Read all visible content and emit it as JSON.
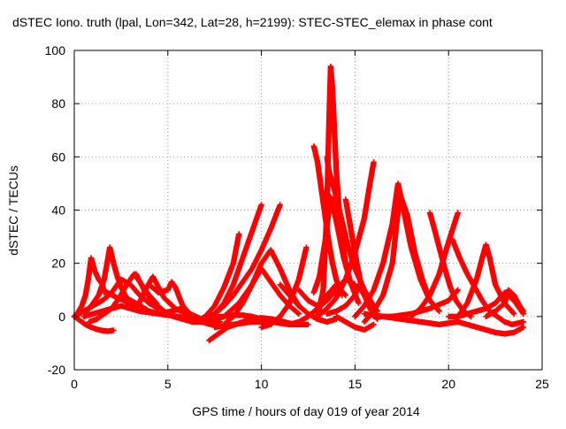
{
  "chart_data": {
    "type": "scatter",
    "title": "dSTEC Iono. truth (lpal, Lon=342, Lat=28, h=2199): STEC-STEC_elemax in phase cont",
    "xlabel": "GPS time / hours of day 019 of year 2014",
    "ylabel": "dSTEC  / TECUs",
    "xlim": [
      0,
      25
    ],
    "ylim": [
      -20,
      100
    ],
    "xticks": [
      0,
      5,
      10,
      15,
      20,
      25
    ],
    "yticks": [
      -20,
      0,
      20,
      40,
      60,
      80,
      100
    ],
    "grid": true,
    "marker": "+",
    "color": "#ff0000",
    "series": [
      {
        "x": [
          0.0,
          0.3,
          0.6,
          0.9,
          1.2,
          1.5,
          1.8,
          2.1
        ],
        "y": [
          0,
          -1.5,
          -3,
          -4,
          -4.8,
          -5.3,
          -5.5,
          -5.2
        ]
      },
      {
        "x": [
          0.0,
          0.2,
          0.4,
          0.6,
          0.75,
          0.9,
          1.1,
          1.3,
          1.5,
          1.6
        ],
        "y": [
          0,
          1.5,
          4,
          8,
          14,
          22,
          17,
          14,
          12,
          9
        ]
      },
      {
        "x": [
          0.5,
          0.8,
          1.0,
          1.3,
          1.6,
          1.9,
          2.1,
          2.3,
          2.5,
          2.8,
          3.2
        ],
        "y": [
          1,
          3,
          5,
          8,
          14,
          26,
          20,
          15,
          11,
          7,
          4
        ]
      },
      {
        "x": [
          0.8,
          1.2,
          1.6,
          2.0,
          2.4,
          2.8,
          3.2,
          3.6,
          4.0,
          4.4
        ],
        "y": [
          -2,
          -1,
          1,
          3,
          7,
          12,
          16,
          12,
          8,
          5
        ]
      },
      {
        "x": [
          0.0,
          0.5,
          1.0,
          1.5,
          2.0,
          2.5,
          3.0,
          3.5,
          4.0,
          4.5
        ],
        "y": [
          0,
          2,
          4,
          6,
          9,
          14,
          12,
          8,
          5,
          3
        ]
      },
      {
        "x": [
          0.5,
          1.5,
          2.5,
          3.5,
          4.5,
          5.5,
          6.3
        ],
        "y": [
          0,
          2,
          4,
          2,
          1,
          0,
          -1
        ]
      },
      {
        "x": [
          1.5,
          2.3,
          3.0,
          3.4,
          3.8,
          4.2,
          4.8,
          5.4,
          6.0,
          6.8
        ],
        "y": [
          10,
          7,
          5,
          4,
          10,
          15,
          7,
          3,
          1,
          -2
        ]
      },
      {
        "x": [
          2.5,
          3.3,
          4.0,
          4.6,
          5.2,
          5.7,
          6.2,
          6.8,
          7.4
        ],
        "y": [
          8,
          5,
          2,
          1,
          2,
          3,
          1,
          -1,
          -2
        ]
      },
      {
        "x": [
          3.3,
          3.8,
          4.3,
          4.8,
          5.3,
          5.8,
          6.3,
          6.8,
          7.3,
          7.8
        ],
        "y": [
          16,
          9,
          5,
          2,
          0,
          -1,
          -2,
          -2,
          -1,
          0
        ]
      },
      {
        "x": [
          4.0,
          4.5,
          5.0,
          5.2,
          5.4,
          5.8,
          6.3,
          6.8,
          7.3,
          7.8
        ],
        "y": [
          12,
          9,
          10,
          13,
          11,
          4,
          0,
          -2,
          -3,
          -2
        ]
      },
      {
        "x": [
          5.5,
          6.0,
          6.5,
          7.0,
          7.5,
          8.0,
          8.5,
          9.0,
          9.5,
          10.0,
          10.5
        ],
        "y": [
          0,
          -1,
          -1.5,
          -1,
          -0.5,
          0,
          0.5,
          0.5,
          0,
          -1,
          -2
        ]
      },
      {
        "x": [
          6.5,
          7.0,
          7.5,
          8.0,
          8.5,
          8.8
        ],
        "y": [
          -2,
          0,
          4,
          11,
          20,
          31
        ]
      },
      {
        "x": [
          6.5,
          7.0,
          7.5,
          8.0,
          8.5,
          9.0,
          9.5,
          10.0
        ],
        "y": [
          -2,
          -1,
          1,
          5,
          12,
          22,
          32,
          42
        ]
      },
      {
        "x": [
          7.0,
          7.5,
          8.0,
          8.5,
          9.0,
          9.5,
          10.0,
          10.5,
          11.0
        ],
        "y": [
          -1,
          1,
          4,
          8,
          13,
          18,
          25,
          33,
          42
        ]
      },
      {
        "x": [
          7.2,
          7.4,
          7.8,
          8.2,
          8.6,
          9.0,
          9.4,
          10.0,
          10.6,
          11.2,
          11.8
        ],
        "y": [
          -9,
          -8,
          -6,
          -4,
          -3,
          -2,
          -1,
          -0.5,
          -1,
          -2,
          -3
        ]
      },
      {
        "x": [
          7.3,
          8.0,
          8.8,
          9.5,
          10.0,
          10.5,
          11.0,
          11.5,
          12.0
        ],
        "y": [
          -2,
          0,
          5,
          12,
          18,
          13,
          8,
          4,
          1
        ]
      },
      {
        "x": [
          7.5,
          8.5,
          9.5,
          10.5,
          11.5,
          12.5
        ],
        "y": [
          -4,
          -3,
          -2,
          -2,
          -3,
          -3
        ]
      },
      {
        "x": [
          8.0,
          8.5,
          9.0,
          9.5,
          10.0,
          10.5,
          11.0,
          11.5,
          12.0
        ],
        "y": [
          -3,
          0,
          5,
          12,
          20,
          25,
          18,
          10,
          4
        ]
      },
      {
        "x": [
          10.0,
          10.5,
          11.0,
          11.5,
          12.0,
          12.4
        ],
        "y": [
          -4,
          -3,
          0,
          5,
          14,
          26
        ]
      },
      {
        "x": [
          11.0,
          11.5,
          12.0,
          12.5,
          13.0,
          13.5,
          14.0
        ],
        "y": [
          12,
          8,
          4,
          1,
          -1,
          -2,
          -1
        ]
      },
      {
        "x": [
          11.5,
          12.0,
          12.5,
          13.0,
          13.5,
          14.0,
          14.5,
          15.0
        ],
        "y": [
          -3,
          -2,
          0,
          3,
          6,
          10,
          14,
          12
        ]
      },
      {
        "x": [
          12.0,
          12.5,
          13.0,
          13.5,
          14.0,
          14.5
        ],
        "y": [
          10,
          6,
          4,
          8,
          12,
          8
        ]
      },
      {
        "x": [
          12.8,
          13.0,
          13.2,
          13.4,
          13.6,
          13.8,
          14.0,
          14.3
        ],
        "y": [
          64,
          58,
          48,
          38,
          28,
          20,
          14,
          8
        ]
      },
      {
        "x": [
          12.8,
          13.1,
          13.4,
          13.7,
          14.0,
          14.4,
          14.8,
          15.2
        ],
        "y": [
          9,
          15,
          28,
          45,
          36,
          22,
          12,
          5
        ]
      },
      {
        "x": [
          13.0,
          13.3,
          13.5,
          13.6,
          13.7,
          13.8,
          13.9,
          14.0,
          14.2,
          14.5
        ],
        "y": [
          0,
          10,
          40,
          70,
          94,
          85,
          70,
          55,
          35,
          20
        ]
      },
      {
        "x": [
          13.5,
          13.6,
          13.8,
          14.0,
          14.3,
          14.6,
          15.0,
          15.5,
          16.0
        ],
        "y": [
          60,
          55,
          50,
          45,
          36,
          27,
          18,
          10,
          4
        ]
      },
      {
        "x": [
          14.5,
          14.7,
          14.9,
          15.1,
          15.3,
          15.5,
          15.8,
          16.2
        ],
        "y": [
          44,
          36,
          28,
          20,
          13,
          8,
          3,
          -1
        ]
      },
      {
        "x": [
          13.5,
          14.0,
          14.5,
          15.0,
          15.2,
          15.4,
          15.8,
          16.2
        ],
        "y": [
          1,
          2,
          4,
          8,
          12,
          9,
          5,
          2
        ]
      },
      {
        "x": [
          14.0,
          14.5,
          15.0,
          15.5,
          16.0
        ],
        "y": [
          0,
          -2,
          -4,
          -5,
          -3
        ]
      },
      {
        "x": [
          13.0,
          13.5,
          14.0,
          14.5,
          15.0,
          15.5,
          15.8,
          16.0
        ],
        "y": [
          0,
          3,
          7,
          14,
          24,
          37,
          50,
          58
        ]
      },
      {
        "x": [
          15.0,
          15.5,
          16.0,
          16.5,
          17.0,
          17.3,
          17.6,
          18.0,
          18.5,
          19.0,
          19.5
        ],
        "y": [
          0,
          4,
          10,
          20,
          35,
          50,
          40,
          26,
          14,
          6,
          2
        ]
      },
      {
        "x": [
          15.5,
          16.0,
          16.5,
          17.0,
          17.4,
          17.8,
          18.2,
          18.6,
          19.0
        ],
        "y": [
          -2,
          2,
          8,
          20,
          46,
          38,
          24,
          14,
          6
        ]
      },
      {
        "x": [
          15.5,
          16.5,
          17.5,
          18.5,
          19.5,
          20.5
        ],
        "y": [
          1,
          0,
          -1,
          -2,
          -3,
          -2
        ]
      },
      {
        "x": [
          16.0,
          17.0,
          18.0,
          19.0,
          20.0,
          20.5
        ],
        "y": [
          0,
          0,
          1,
          3,
          6,
          10
        ]
      },
      {
        "x": [
          18.0,
          18.5,
          19.0,
          19.5,
          20.0,
          20.5
        ],
        "y": [
          0,
          3,
          8,
          16,
          28,
          39
        ]
      },
      {
        "x": [
          19.0,
          19.2,
          19.5,
          19.8,
          20.1,
          20.4,
          20.8,
          21.2
        ],
        "y": [
          39,
          34,
          26,
          18,
          11,
          6,
          2,
          0
        ]
      },
      {
        "x": [
          20.2,
          20.6,
          21.0,
          21.4,
          21.8,
          22.2,
          22.6,
          23.0,
          23.4,
          24.0
        ],
        "y": [
          29,
          22,
          16,
          11,
          6,
          2,
          0,
          -2,
          -3,
          -2
        ]
      },
      {
        "x": [
          20.5,
          21.0,
          21.5,
          21.8,
          22.0,
          22.2,
          22.5,
          23.0,
          23.5
        ],
        "y": [
          0,
          5,
          14,
          22,
          27,
          22,
          12,
          5,
          1
        ]
      },
      {
        "x": [
          20.5,
          21.0,
          21.5,
          22.0,
          22.5,
          23.0,
          23.5,
          24.0
        ],
        "y": [
          -2,
          -3,
          -4,
          -5,
          -6,
          -6.5,
          -6,
          -4
        ]
      },
      {
        "x": [
          20.0,
          20.5,
          21.0,
          21.5,
          22.0,
          22.5,
          23.0,
          23.5,
          24.0
        ],
        "y": [
          0,
          0,
          1,
          2,
          3,
          5,
          9,
          6,
          1
        ]
      },
      {
        "x": [
          22.0,
          22.5,
          23.0,
          23.2,
          23.5,
          23.8,
          24.0
        ],
        "y": [
          0,
          2,
          5,
          10,
          8,
          4,
          2
        ]
      }
    ]
  }
}
